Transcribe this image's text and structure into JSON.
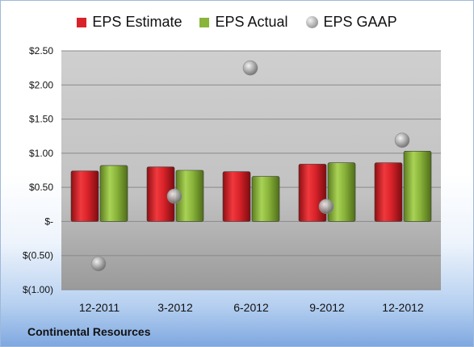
{
  "footer": {
    "company": "Continental Resources"
  },
  "colors": {
    "estimate": "#d9232a",
    "actual": "#8ab43a",
    "gaap": "#a7a7a7",
    "plot_bg": "#c8c8c8"
  },
  "chart_data": {
    "type": "bar",
    "categories": [
      "12-2011",
      "3-2012",
      "6-2012",
      "9-2012",
      "12-2012"
    ],
    "series": [
      {
        "name": "EPS Estimate",
        "kind": "bar",
        "values": [
          0.74,
          0.8,
          0.73,
          0.84,
          0.86
        ]
      },
      {
        "name": "EPS Actual",
        "kind": "bar",
        "values": [
          0.82,
          0.75,
          0.66,
          0.86,
          1.03
        ]
      },
      {
        "name": "EPS GAAP",
        "kind": "scatter",
        "values": [
          -0.62,
          0.37,
          2.25,
          0.22,
          1.19
        ]
      }
    ],
    "ylim": [
      -1.0,
      2.5
    ],
    "yticks": [
      2.5,
      2.0,
      1.5,
      1.0,
      0.5,
      0,
      -0.5,
      -1.0
    ],
    "ytick_labels": [
      "$2.50",
      "$2.00",
      "$1.50",
      "$1.00",
      "$0.50",
      "$-",
      "$(0.50)",
      "$(1.00)"
    ],
    "legend": "top",
    "grid": true
  }
}
